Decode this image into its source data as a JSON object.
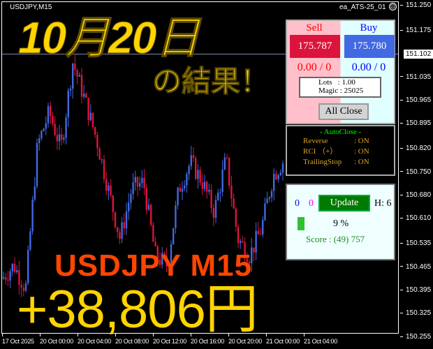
{
  "chart": {
    "symbol": "USDJPY,M15",
    "ea_name": "ea_ATS-25_01",
    "ea_status_icon": "sad-face-icon",
    "price_labels": [
      "151.250",
      "151.175",
      "151.035",
      "150.965",
      "150.895",
      "150.820",
      "150.750",
      "150.680",
      "150.610",
      "150.535",
      "150.465",
      "150.395",
      "150.325",
      "150.255"
    ],
    "current_price": "151.102",
    "time_labels": [
      "17 Oct 2025",
      "20 Oct 00:00",
      "20 Oct 04:00",
      "20 Oct 08:00",
      "20 Oct 12:00",
      "20 Oct 16:00",
      "20 Oct 20:00",
      "21 Oct 00:00",
      "21 Oct 04:00"
    ],
    "bull_color": "#4169e1",
    "bear_color": "#dc143c",
    "price_path": [
      150.43,
      150.47,
      150.4,
      150.83,
      150.93,
      150.82,
      151.08,
      150.97,
      150.85,
      150.7,
      150.55,
      150.7,
      150.72,
      150.5,
      150.47,
      150.7,
      150.78,
      150.72,
      150.63,
      150.79,
      150.55,
      150.5,
      150.58,
      150.74,
      150.79
    ]
  },
  "panel": {
    "sell_label": "Sell",
    "buy_label": "Buy",
    "sell_price": "175.787",
    "buy_price": "175.780",
    "sell_pos": "0.00 / 0",
    "buy_pos": "0.00 / 0",
    "lots": "Lots   : 1.00",
    "magic": "Magic : 25025",
    "all_close": "All Close"
  },
  "autoclose": {
    "title": "- AutoClose -",
    "rows": [
      {
        "k": "Reverse",
        "v": ": ON"
      },
      {
        "k": "RCI （+）",
        "v": ": ON"
      },
      {
        "k": "TrailingStop",
        "v": ": ON"
      }
    ]
  },
  "stats": {
    "blue_count": "0",
    "magenta_count": "0",
    "update": "Update",
    "h": "H: 6",
    "percent": "9 %",
    "progress": 0.09,
    "score": "Score : (49) 757"
  },
  "overlay": {
    "date_title": "10月20日",
    "subtitle": "の結果！",
    "pair": "USDJPY M15",
    "profit": "+38,806円"
  }
}
